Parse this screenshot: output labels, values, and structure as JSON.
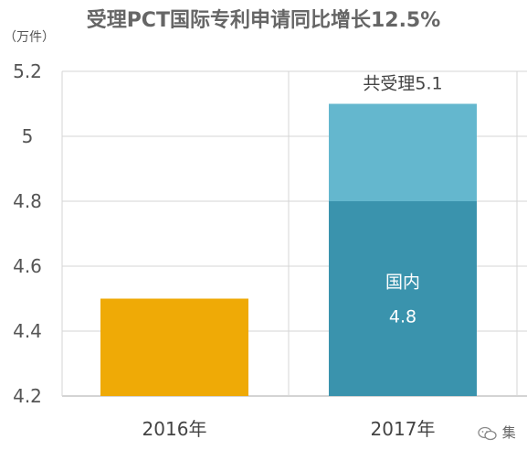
{
  "title": "受理PCT国际专利申请同比增长12.5%",
  "unit_label": "（万件）",
  "watermark": "集",
  "chart_data": {
    "type": "bar",
    "title": "受理PCT国际专利申请同比增长12.5%",
    "ylabel": "（万件）",
    "xlabel": "",
    "ylim": [
      4.2,
      5.2
    ],
    "yticks": [
      "4.2",
      "4.4",
      "4.6",
      "4.8",
      "5",
      "5.2"
    ],
    "categories": [
      "2016年",
      "2017年"
    ],
    "grid": true,
    "bars": [
      {
        "category": "2016年",
        "segments": [
          {
            "value": 4.5,
            "color": "#EFAA06"
          }
        ]
      },
      {
        "category": "2017年",
        "segments": [
          {
            "value": 4.8,
            "color": "#3A93AD",
            "label": "国内",
            "value_label": "4.8"
          },
          {
            "value": 5.1,
            "color": "#64B7CE"
          }
        ],
        "total_label": "共受理5.1"
      }
    ]
  }
}
